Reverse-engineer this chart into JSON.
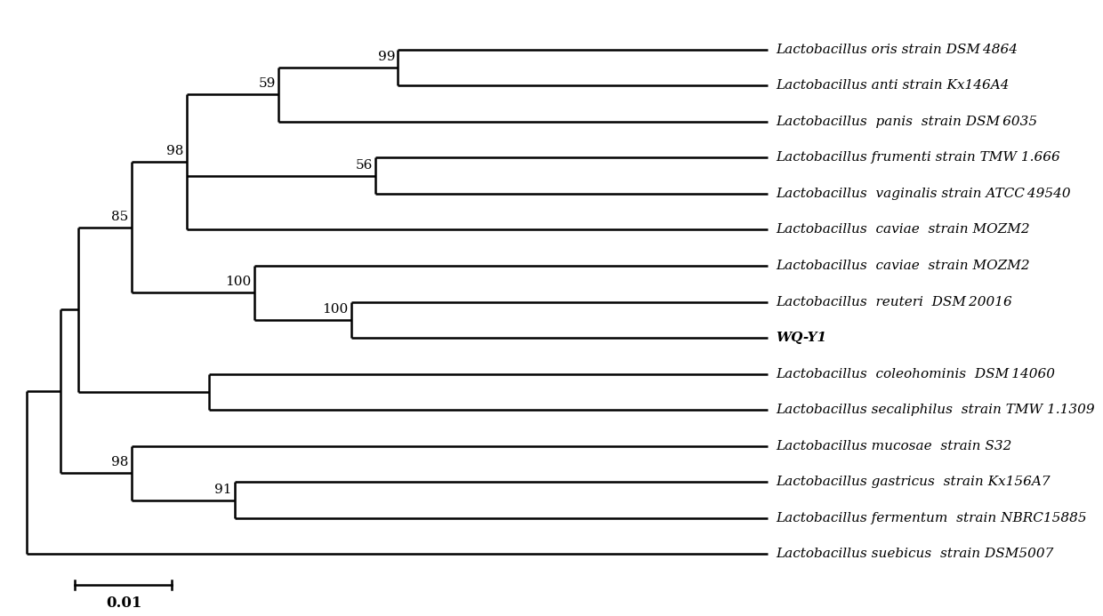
{
  "figsize": [
    12.4,
    6.93
  ],
  "dpi": 100,
  "background": "#ffffff",
  "scale_bar_value": "0.01",
  "taxa": [
    "Lactobacillus oris strain DSM 4864",
    "Lactobacillus anti strain Kx146A4",
    "Lactobacillus  panis  strain DSM 6035",
    "Lactobacillus frumenti strain TMW 1.666",
    "Lactobacillus  vaginalis strain ATCC 49540",
    "Lactobacillus  caviae  strain MOZM2",
    "Lactobacillus  caviae  strain MOZM2",
    "Lactobacillus  reuteri  DSM 20016",
    "WQ-Y1",
    "Lactobacillus  coleohominis  DSM 14060",
    "Lactobacillus secaliphilus  strain TMW 1.1309",
    "Lactobacillus mucosae  strain S32",
    "Lactobacillus gastricus  strain Kx156A7",
    "Lactobacillus fermentum  strain NBRC15885",
    "Lactobacillus suebicus  strain DSM5007"
  ],
  "taxa_bold": [
    8
  ],
  "bootstrap": {
    "nD": "99",
    "nC": "59",
    "nE": "56",
    "nB": "98",
    "nG": "100",
    "nF": "100",
    "nA": "85",
    "nJ": "91",
    "nI": "98"
  },
  "lw": 1.8,
  "font_size_taxa": 11,
  "font_size_bootstrap": 11,
  "font_size_scalebar": 12
}
